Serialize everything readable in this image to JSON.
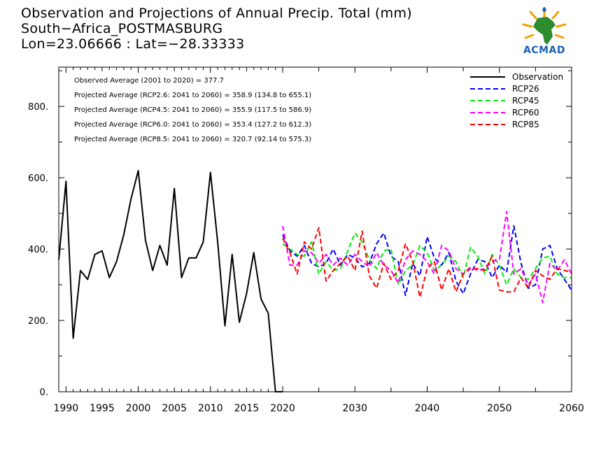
{
  "title": {
    "line1": "Observation and Projections of Annual Precip. Total (mm)",
    "line2": "South−Africa_POSTMASBURG",
    "line3": "Lon=23.06666 : Lat=−28.33333"
  },
  "logo": {
    "text": "ACMAD",
    "icon": "africa-map-logo-icon"
  },
  "colors": {
    "observation": "#000000",
    "rcp26": "#0000ff",
    "rcp45": "#00ee00",
    "rcp60": "#ff00ff",
    "rcp85": "#ff0000"
  },
  "chart_data": {
    "type": "line",
    "xlim": [
      1989,
      2060
    ],
    "ylim": [
      0,
      910
    ],
    "x_ticks": [
      1990,
      1995,
      2000,
      2005,
      2010,
      2015,
      2020,
      2030,
      2040,
      2050,
      2060
    ],
    "y_ticks": [
      {
        "value": 0,
        "label": "0."
      },
      {
        "value": 200,
        "label": "200."
      },
      {
        "value": 400,
        "label": "400."
      },
      {
        "value": 600,
        "label": "600."
      },
      {
        "value": 800,
        "label": "800."
      }
    ],
    "annotations": [
      "Observed Average (2001 to 2020) = 377.7",
      "Projected Average (RCP2.6: 2041 to 2060) = 358.9 (134.8 to 655.1)",
      "Projected Average (RCP4.5: 2041 to 2060) = 355.9 (117.5 to 586.9)",
      "Projected Average (RCP6.0: 2041 to 2060) = 353.4 (127.2 to 612.3)",
      "Projected Average (RCP8.5: 2041 to 2060) = 320.7 (92.14 to 575.3)"
    ],
    "legend_position": "top-right",
    "series": [
      {
        "name": "Observation",
        "key": "observation",
        "dash": "solid",
        "x": [
          1989,
          1990,
          1991,
          1992,
          1993,
          1994,
          1995,
          1996,
          1997,
          1998,
          1999,
          2000,
          2001,
          2002,
          2003,
          2004,
          2005,
          2006,
          2007,
          2008,
          2009,
          2010,
          2011,
          2012,
          2013,
          2014,
          2015,
          2016,
          2017,
          2018,
          2019,
          2020
        ],
        "values": [
          370,
          590,
          150,
          340,
          315,
          385,
          395,
          320,
          365,
          440,
          540,
          620,
          425,
          340,
          410,
          355,
          570,
          320,
          375,
          375,
          420,
          615,
          420,
          185,
          385,
          195,
          275,
          390,
          260,
          220,
          0,
          0
        ]
      },
      {
        "name": "RCP26",
        "key": "rcp26",
        "dash": "dashed",
        "x": [
          2020,
          2021,
          2022,
          2023,
          2024,
          2025,
          2026,
          2027,
          2028,
          2029,
          2030,
          2031,
          2032,
          2033,
          2034,
          2035,
          2036,
          2037,
          2038,
          2039,
          2040,
          2041,
          2042,
          2043,
          2044,
          2045,
          2046,
          2047,
          2048,
          2049,
          2050,
          2051,
          2052,
          2053,
          2054,
          2055,
          2056,
          2057,
          2058,
          2059,
          2060
        ],
        "values": [
          440,
          395,
          380,
          410,
          360,
          350,
          360,
          400,
          355,
          385,
          375,
          350,
          360,
          415,
          445,
          380,
          365,
          270,
          360,
          325,
          435,
          375,
          355,
          390,
          310,
          275,
          330,
          370,
          365,
          320,
          355,
          335,
          465,
          360,
          290,
          300,
          400,
          410,
          345,
          315,
          285
        ]
      },
      {
        "name": "RCP45",
        "key": "rcp45",
        "dash": "dashed",
        "x": [
          2020,
          2021,
          2022,
          2023,
          2024,
          2025,
          2026,
          2027,
          2028,
          2029,
          2030,
          2031,
          2032,
          2033,
          2034,
          2035,
          2036,
          2037,
          2038,
          2039,
          2040,
          2041,
          2042,
          2043,
          2044,
          2045,
          2046,
          2047,
          2048,
          2049,
          2050,
          2051,
          2052,
          2053,
          2054,
          2055,
          2056,
          2057,
          2058,
          2059,
          2060
        ],
        "values": [
          415,
          400,
          385,
          380,
          420,
          330,
          365,
          340,
          345,
          395,
          445,
          420,
          370,
          345,
          395,
          400,
          300,
          340,
          355,
          410,
          390,
          340,
          355,
          380,
          365,
          320,
          405,
          380,
          330,
          385,
          355,
          300,
          345,
          320,
          315,
          345,
          375,
          380,
          330,
          320,
          320
        ]
      },
      {
        "name": "RCP60",
        "key": "rcp60",
        "dash": "dashed",
        "x": [
          2020,
          2021,
          2022,
          2023,
          2024,
          2025,
          2026,
          2027,
          2028,
          2029,
          2030,
          2031,
          2032,
          2033,
          2034,
          2035,
          2036,
          2037,
          2038,
          2039,
          2040,
          2041,
          2042,
          2043,
          2044,
          2045,
          2046,
          2047,
          2048,
          2049,
          2050,
          2051,
          2052,
          2053,
          2054,
          2055,
          2056,
          2057,
          2058,
          2059,
          2060
        ],
        "values": [
          465,
          355,
          355,
          395,
          390,
          360,
          385,
          355,
          375,
          355,
          385,
          365,
          350,
          390,
          355,
          340,
          305,
          370,
          395,
          385,
          365,
          330,
          410,
          395,
          345,
          330,
          350,
          340,
          345,
          365,
          370,
          505,
          330,
          345,
          300,
          330,
          250,
          360,
          340,
          370,
          330
        ]
      },
      {
        "name": "RCP85",
        "key": "rcp85",
        "dash": "dashed",
        "x": [
          2020,
          2021,
          2022,
          2023,
          2024,
          2025,
          2026,
          2027,
          2028,
          2029,
          2030,
          2031,
          2032,
          2033,
          2034,
          2035,
          2036,
          2037,
          2038,
          2039,
          2040,
          2041,
          2042,
          2043,
          2044,
          2045,
          2046,
          2047,
          2048,
          2049,
          2050,
          2051,
          2052,
          2053,
          2054,
          2055,
          2056,
          2057,
          2058,
          2059,
          2060
        ],
        "values": [
          430,
          390,
          330,
          420,
          400,
          460,
          310,
          340,
          360,
          380,
          340,
          450,
          325,
          290,
          360,
          315,
          340,
          415,
          365,
          265,
          345,
          365,
          285,
          345,
          280,
          330,
          345,
          345,
          340,
          380,
          285,
          280,
          280,
          320,
          290,
          340,
          325,
          315,
          345,
          340,
          335
        ]
      }
    ]
  }
}
